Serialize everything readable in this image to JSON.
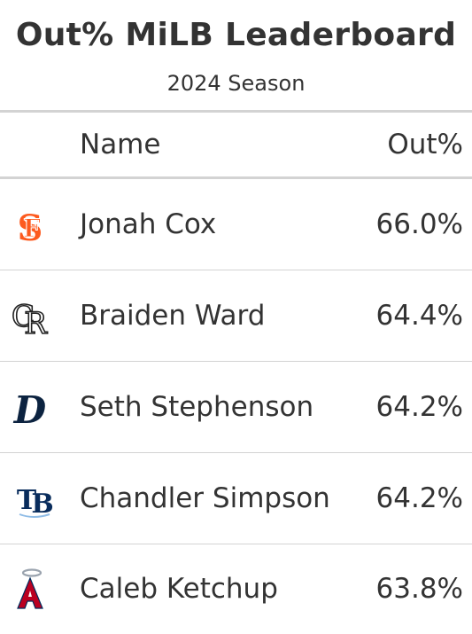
{
  "title": "Out% MiLB Leaderboard",
  "subtitle": "2024 Season",
  "columns": {
    "name": "Name",
    "value": "Out%"
  },
  "rows": [
    {
      "team_logo": "sf-giants-logo-icon",
      "name": "Jonah Cox",
      "value": "66.0%"
    },
    {
      "team_logo": "colorado-rockies-logo-icon",
      "name": "Braiden Ward",
      "value": "64.4%"
    },
    {
      "team_logo": "detroit-tigers-logo-icon",
      "name": "Seth Stephenson",
      "value": "64.2%"
    },
    {
      "team_logo": "tampa-bay-rays-logo-icon",
      "name": "Chandler Simpson",
      "value": "64.2%"
    },
    {
      "team_logo": "la-angels-logo-icon",
      "name": "Caleb Ketchup",
      "value": "63.8%"
    }
  ],
  "colors": {
    "giants": "#fd5a1e",
    "rockies": "#33006f",
    "tigers": "#0c2340",
    "rays": "#092c5c",
    "angels": "#ba0021"
  }
}
